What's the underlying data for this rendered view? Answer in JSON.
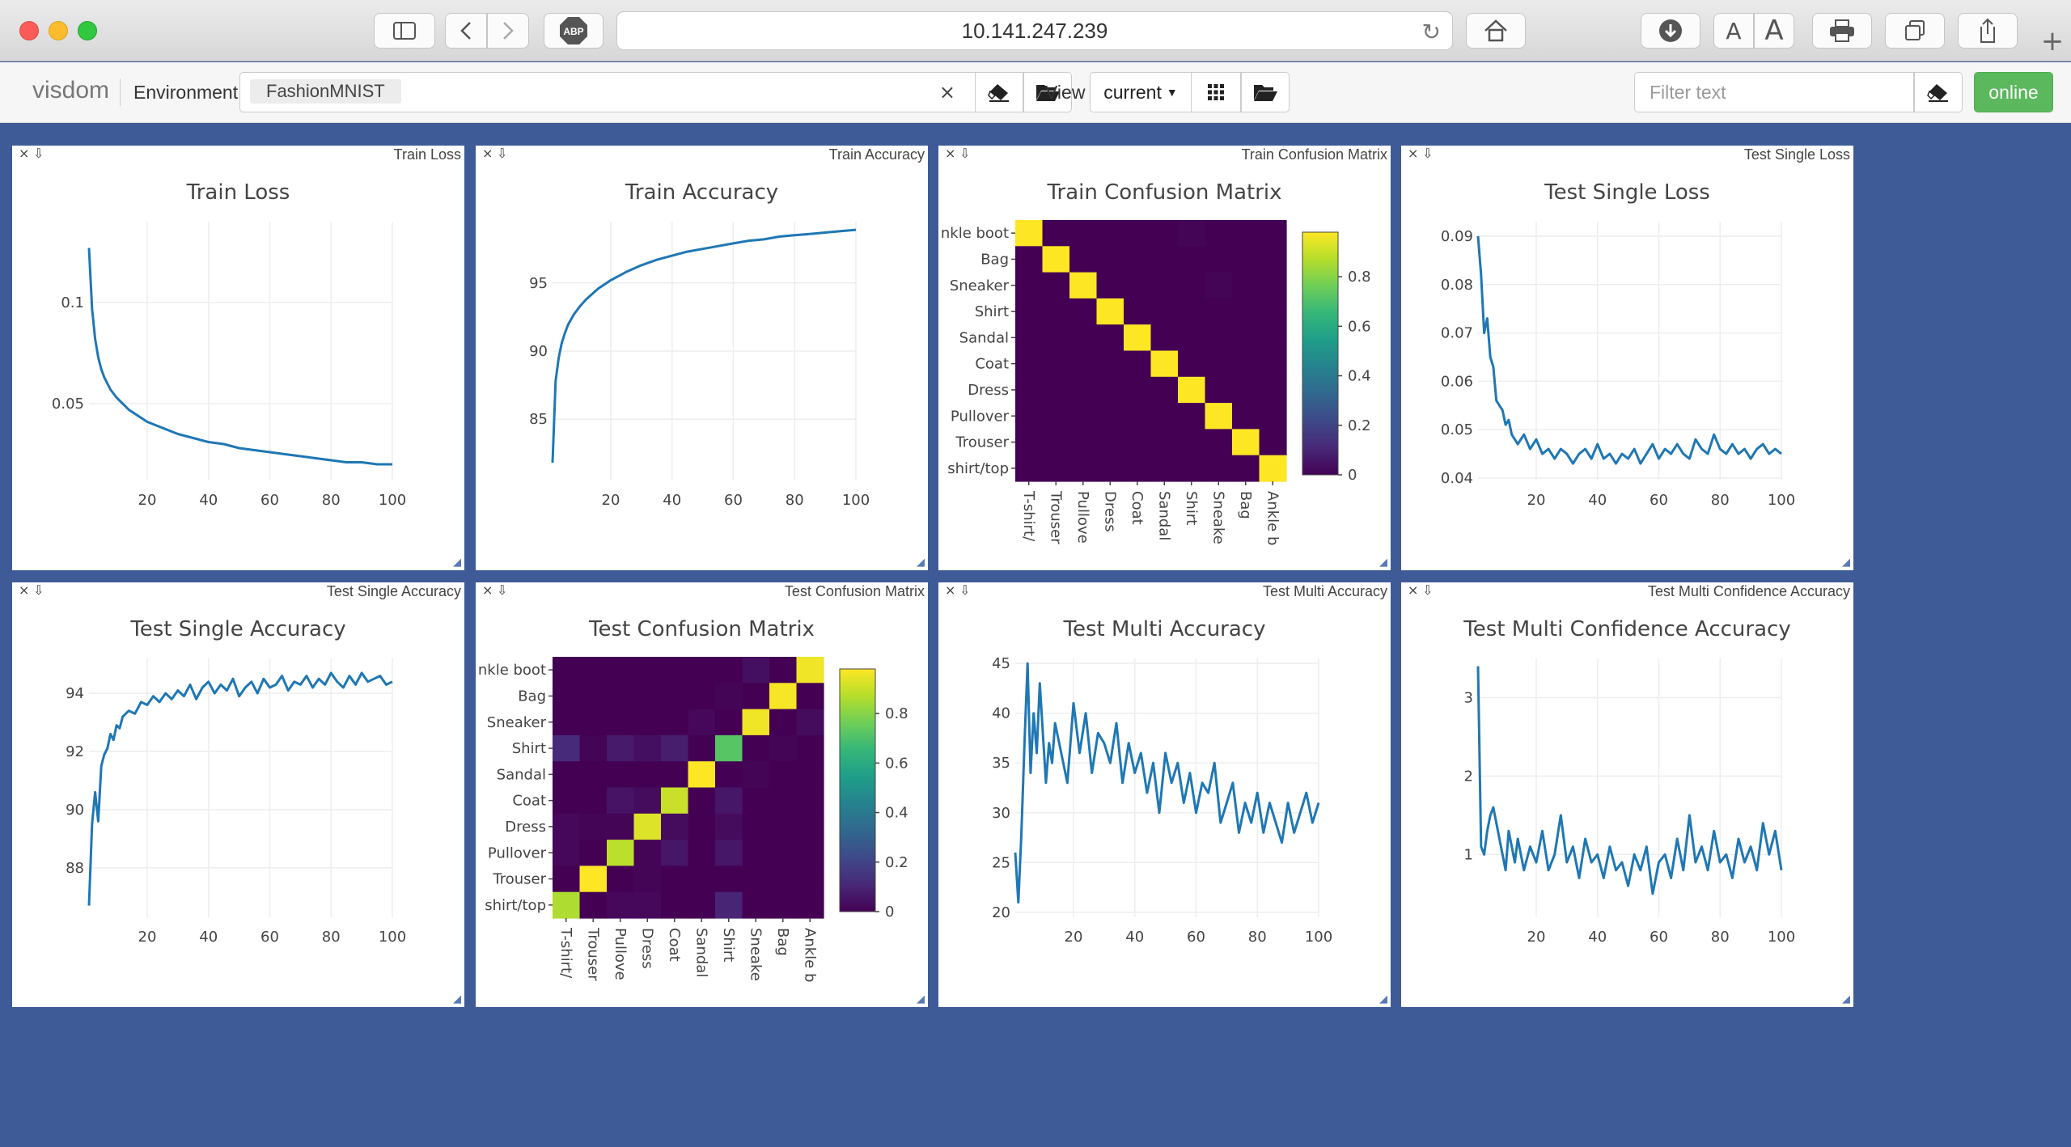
{
  "browser": {
    "url": "10.141.247.239",
    "adblock_label": "ABP",
    "text_smaller": "A",
    "text_larger": "A",
    "icons": [
      "sidebar-icon",
      "back-icon",
      "forward-icon",
      "adblock-icon",
      "reload-icon",
      "home-icon",
      "download-icon",
      "print-icon",
      "tabs-icon",
      "share-icon",
      "new-tab-icon"
    ]
  },
  "toolbar": {
    "brand": "visdom",
    "environment_label": "Environment",
    "environment_chip": "FashionMNIST",
    "clear_symbol": "×",
    "view_label": "View",
    "view_value": "current",
    "filter_placeholder": "Filter text",
    "status": "online"
  },
  "colors": {
    "background": "#3e5b98",
    "line": "#1f77b4",
    "online": "#5cb85c",
    "viridis_low": "#440154",
    "viridis_high": "#fde725"
  },
  "chart_data": [
    {
      "id": "train-loss",
      "type": "line",
      "caption": "Train Loss",
      "title": "Train Loss",
      "xlim": [
        1,
        100
      ],
      "ylim": [
        0.012,
        0.14
      ],
      "x_ticks": [
        20,
        40,
        60,
        80,
        100
      ],
      "x_tick_labels": [
        "20",
        "40",
        "60",
        "80",
        "100"
      ],
      "y_ticks": [
        0.05,
        0.1
      ],
      "y_tick_labels": [
        "0.05",
        "0.1"
      ],
      "x": [
        1,
        2,
        3,
        4,
        5,
        6,
        7,
        8,
        9,
        10,
        12,
        14,
        16,
        18,
        20,
        25,
        30,
        35,
        40,
        45,
        50,
        55,
        60,
        65,
        70,
        75,
        80,
        85,
        90,
        95,
        100
      ],
      "y": [
        0.127,
        0.097,
        0.082,
        0.073,
        0.067,
        0.063,
        0.06,
        0.057,
        0.055,
        0.053,
        0.05,
        0.047,
        0.045,
        0.043,
        0.041,
        0.038,
        0.035,
        0.033,
        0.031,
        0.03,
        0.028,
        0.027,
        0.026,
        0.025,
        0.024,
        0.023,
        0.022,
        0.021,
        0.021,
        0.02,
        0.02
      ]
    },
    {
      "id": "train-accuracy",
      "type": "line",
      "caption": "Train Accuracy",
      "title": "Train Accuracy",
      "xlim": [
        1,
        100
      ],
      "ylim": [
        80.5,
        99.5
      ],
      "x_ticks": [
        20,
        40,
        60,
        80,
        100
      ],
      "x_tick_labels": [
        "20",
        "40",
        "60",
        "80",
        "100"
      ],
      "y_ticks": [
        85,
        90,
        95
      ],
      "y_tick_labels": [
        "85",
        "90",
        "95"
      ],
      "x": [
        1,
        2,
        3,
        4,
        5,
        6,
        7,
        8,
        10,
        12,
        14,
        16,
        18,
        20,
        25,
        30,
        35,
        40,
        45,
        50,
        55,
        60,
        65,
        70,
        75,
        80,
        85,
        90,
        95,
        100
      ],
      "y": [
        81.8,
        87.8,
        89.5,
        90.6,
        91.3,
        91.9,
        92.3,
        92.7,
        93.3,
        93.8,
        94.2,
        94.6,
        94.9,
        95.2,
        95.8,
        96.3,
        96.7,
        97.0,
        97.3,
        97.5,
        97.7,
        97.9,
        98.1,
        98.2,
        98.4,
        98.5,
        98.6,
        98.7,
        98.8,
        98.9
      ]
    },
    {
      "id": "train-confusion",
      "type": "heatmap",
      "caption": "Train Confusion Matrix",
      "title": "Train Confusion Matrix",
      "y_tick_labels": [
        "nkle boot",
        "Bag",
        "Sneaker",
        "Shirt",
        "Sandal",
        "Coat",
        "Dress",
        "Pullover",
        "Trouser",
        "shirt/top"
      ],
      "x_tick_labels": [
        "T-shirt/",
        "Trouser",
        "Pullove",
        "Dress",
        "Coat",
        "Sandal",
        "Shirt",
        "Sneake",
        "Bag",
        "Ankle b"
      ],
      "colorbar_ticks": [
        0,
        0.2,
        0.4,
        0.6,
        0.8
      ],
      "colorbar_tick_labels": [
        "0",
        "0.2",
        "0.4",
        "0.6",
        "0.8"
      ],
      "zlim": [
        0,
        0.98
      ],
      "z": [
        [
          0.98,
          0,
          0,
          0,
          0,
          0,
          0.01,
          0,
          0,
          0
        ],
        [
          0,
          0.98,
          0,
          0,
          0,
          0,
          0,
          0,
          0,
          0
        ],
        [
          0,
          0,
          0.98,
          0,
          0,
          0,
          0,
          0.01,
          0,
          0
        ],
        [
          0,
          0,
          0,
          0.98,
          0,
          0,
          0,
          0,
          0,
          0
        ],
        [
          0,
          0,
          0,
          0,
          0.98,
          0,
          0,
          0,
          0,
          0
        ],
        [
          0,
          0,
          0,
          0,
          0,
          0.98,
          0,
          0,
          0,
          0
        ],
        [
          0,
          0,
          0,
          0,
          0,
          0,
          0.98,
          0,
          0,
          0
        ],
        [
          0,
          0,
          0,
          0,
          0,
          0,
          0,
          0.98,
          0,
          0
        ],
        [
          0,
          0,
          0,
          0,
          0,
          0,
          0,
          0,
          0.98,
          0
        ],
        [
          0,
          0,
          0,
          0,
          0,
          0,
          0,
          0,
          0,
          0.98
        ]
      ]
    },
    {
      "id": "test-single-loss",
      "type": "line",
      "caption": "Test Single Loss",
      "title": "Test Single Loss",
      "xlim": [
        1,
        100
      ],
      "ylim": [
        0.0395,
        0.093
      ],
      "x_ticks": [
        20,
        40,
        60,
        80,
        100
      ],
      "x_tick_labels": [
        "20",
        "40",
        "60",
        "80",
        "100"
      ],
      "y_ticks": [
        0.04,
        0.05,
        0.06,
        0.07,
        0.08,
        0.09
      ],
      "y_tick_labels": [
        "0.04",
        "0.05",
        "0.06",
        "0.07",
        "0.08",
        "0.09"
      ],
      "x": [
        1,
        2,
        3,
        4,
        5,
        6,
        7,
        8,
        9,
        10,
        11,
        12,
        14,
        16,
        18,
        20,
        22,
        24,
        26,
        28,
        30,
        32,
        34,
        36,
        38,
        40,
        42,
        44,
        46,
        48,
        50,
        52,
        54,
        56,
        58,
        60,
        62,
        64,
        66,
        68,
        70,
        72,
        74,
        76,
        78,
        80,
        82,
        84,
        86,
        88,
        90,
        92,
        94,
        96,
        98,
        100
      ],
      "y": [
        0.09,
        0.082,
        0.07,
        0.073,
        0.065,
        0.063,
        0.056,
        0.055,
        0.054,
        0.051,
        0.052,
        0.049,
        0.047,
        0.049,
        0.046,
        0.048,
        0.045,
        0.046,
        0.044,
        0.046,
        0.045,
        0.043,
        0.045,
        0.046,
        0.044,
        0.047,
        0.044,
        0.045,
        0.043,
        0.045,
        0.044,
        0.046,
        0.043,
        0.045,
        0.047,
        0.044,
        0.046,
        0.045,
        0.047,
        0.045,
        0.044,
        0.048,
        0.046,
        0.045,
        0.049,
        0.046,
        0.045,
        0.047,
        0.045,
        0.046,
        0.044,
        0.046,
        0.047,
        0.045,
        0.046,
        0.045
      ]
    },
    {
      "id": "test-single-accuracy",
      "type": "line",
      "caption": "Test Single Accuracy",
      "title": "Test Single Accuracy",
      "xlim": [
        1,
        100
      ],
      "ylim": [
        86.3,
        95.2
      ],
      "x_ticks": [
        20,
        40,
        60,
        80,
        100
      ],
      "x_tick_labels": [
        "20",
        "40",
        "60",
        "80",
        "100"
      ],
      "y_ticks": [
        88,
        90,
        92,
        94
      ],
      "y_tick_labels": [
        "88",
        "90",
        "92",
        "94"
      ],
      "x": [
        1,
        2,
        3,
        4,
        5,
        6,
        7,
        8,
        9,
        10,
        11,
        12,
        14,
        16,
        18,
        20,
        22,
        24,
        26,
        28,
        30,
        32,
        34,
        36,
        38,
        40,
        42,
        44,
        46,
        48,
        50,
        52,
        54,
        56,
        58,
        60,
        62,
        64,
        66,
        68,
        70,
        72,
        74,
        76,
        78,
        80,
        82,
        84,
        86,
        88,
        90,
        92,
        94,
        96,
        98,
        100
      ],
      "y": [
        86.7,
        89.5,
        90.6,
        89.6,
        91.5,
        91.9,
        92.1,
        92.6,
        92.4,
        92.9,
        92.8,
        93.2,
        93.4,
        93.3,
        93.7,
        93.6,
        93.9,
        93.7,
        94.0,
        93.8,
        94.1,
        93.9,
        94.3,
        93.8,
        94.2,
        94.4,
        94.0,
        94.3,
        94.1,
        94.5,
        93.9,
        94.2,
        94.4,
        94.0,
        94.5,
        94.2,
        94.3,
        94.6,
        94.1,
        94.4,
        94.3,
        94.6,
        94.2,
        94.5,
        94.3,
        94.7,
        94.4,
        94.2,
        94.6,
        94.3,
        94.7,
        94.4,
        94.5,
        94.6,
        94.3,
        94.4
      ]
    },
    {
      "id": "test-confusion",
      "type": "heatmap",
      "caption": "Test Confusion Matrix",
      "title": "Test Confusion Matrix",
      "y_tick_labels": [
        "nkle boot",
        "Bag",
        "Sneaker",
        "Shirt",
        "Sandal",
        "Coat",
        "Dress",
        "Pullover",
        "Trouser",
        "shirt/top"
      ],
      "x_tick_labels": [
        "T-shirt/",
        "Trouser",
        "Pullove",
        "Dress",
        "Coat",
        "Sandal",
        "Shirt",
        "Sneake",
        "Bag",
        "Ankle b"
      ],
      "colorbar_ticks": [
        0,
        0.2,
        0.4,
        0.6,
        0.8
      ],
      "colorbar_tick_labels": [
        "0",
        "0.2",
        "0.4",
        "0.6",
        "0.8"
      ],
      "zlim": [
        0,
        0.98
      ],
      "z": [
        [
          0,
          0,
          0,
          0,
          0,
          0,
          0,
          0.04,
          0,
          0.96
        ],
        [
          0,
          0,
          0,
          0,
          0,
          0,
          0.01,
          0,
          0.97,
          0
        ],
        [
          0,
          0,
          0,
          0,
          0,
          0.02,
          0,
          0.96,
          0,
          0.03
        ],
        [
          0.12,
          0.01,
          0.07,
          0.04,
          0.08,
          0,
          0.72,
          0,
          0.01,
          0
        ],
        [
          0,
          0,
          0,
          0,
          0,
          0.98,
          0,
          0.01,
          0,
          0
        ],
        [
          0,
          0,
          0.05,
          0.03,
          0.9,
          0,
          0.06,
          0,
          0,
          0
        ],
        [
          0.02,
          0.01,
          0.01,
          0.93,
          0.03,
          0,
          0.03,
          0,
          0,
          0
        ],
        [
          0.02,
          0,
          0.88,
          0.01,
          0.06,
          0,
          0.06,
          0,
          0,
          0
        ],
        [
          0,
          0.98,
          0,
          0.01,
          0,
          0,
          0,
          0,
          0,
          0
        ],
        [
          0.86,
          0,
          0.02,
          0.02,
          0,
          0,
          0.1,
          0,
          0,
          0
        ]
      ]
    },
    {
      "id": "test-multi-accuracy",
      "type": "line",
      "caption": "Test Multi Accuracy",
      "title": "Test Multi Accuracy",
      "xlim": [
        1,
        100
      ],
      "ylim": [
        19.5,
        45.5
      ],
      "x_ticks": [
        20,
        40,
        60,
        80,
        100
      ],
      "x_tick_labels": [
        "20",
        "40",
        "60",
        "80",
        "100"
      ],
      "y_ticks": [
        20,
        25,
        30,
        35,
        40,
        45
      ],
      "y_tick_labels": [
        "20",
        "25",
        "30",
        "35",
        "40",
        "45"
      ],
      "x": [
        1,
        2,
        3,
        4,
        5,
        6,
        7,
        8,
        9,
        10,
        11,
        12,
        13,
        14,
        16,
        18,
        20,
        22,
        24,
        26,
        28,
        30,
        32,
        34,
        36,
        38,
        40,
        42,
        44,
        46,
        48,
        50,
        52,
        54,
        56,
        58,
        60,
        62,
        64,
        66,
        68,
        70,
        72,
        74,
        76,
        78,
        80,
        82,
        84,
        86,
        88,
        90,
        92,
        94,
        96,
        98,
        100
      ],
      "y": [
        26,
        21,
        28,
        37,
        45,
        34,
        40,
        36,
        43,
        38,
        33,
        37,
        35,
        39,
        36,
        33,
        41,
        36,
        40,
        34,
        38,
        37,
        35,
        39,
        33,
        37,
        34,
        36,
        32,
        35,
        30,
        36,
        33,
        35,
        31,
        34,
        30,
        33,
        32,
        35,
        29,
        31,
        33,
        28,
        31,
        29,
        32,
        28,
        31,
        29,
        27,
        31,
        28,
        30,
        32,
        29,
        31
      ]
    },
    {
      "id": "test-multi-confidence",
      "type": "line",
      "caption": "Test Multi Confidence Accuracy",
      "title": "Test Multi Confidence Accuracy",
      "xlim": [
        1,
        100
      ],
      "ylim": [
        0.2,
        3.5
      ],
      "x_ticks": [
        20,
        40,
        60,
        80,
        100
      ],
      "x_tick_labels": [
        "20",
        "40",
        "60",
        "80",
        "100"
      ],
      "y_ticks": [
        1,
        2,
        3
      ],
      "y_tick_labels": [
        "1",
        "2",
        "3"
      ],
      "x": [
        1,
        2,
        3,
        4,
        5,
        6,
        7,
        8,
        9,
        10,
        11,
        12,
        13,
        14,
        16,
        18,
        20,
        22,
        24,
        26,
        28,
        30,
        32,
        34,
        36,
        38,
        40,
        42,
        44,
        46,
        48,
        50,
        52,
        54,
        56,
        58,
        60,
        62,
        64,
        66,
        68,
        70,
        72,
        74,
        76,
        78,
        80,
        82,
        84,
        86,
        88,
        90,
        92,
        94,
        96,
        98,
        100
      ],
      "y": [
        3.4,
        1.1,
        1.0,
        1.3,
        1.5,
        1.6,
        1.4,
        1.2,
        1.0,
        0.8,
        1.3,
        1.1,
        0.9,
        1.2,
        0.8,
        1.1,
        0.9,
        1.3,
        0.8,
        1.0,
        1.5,
        0.9,
        1.1,
        0.7,
        1.2,
        0.9,
        1.0,
        0.7,
        1.1,
        0.8,
        0.9,
        0.6,
        1.0,
        0.8,
        1.1,
        0.5,
        0.9,
        1.0,
        0.7,
        1.2,
        0.8,
        1.5,
        0.9,
        1.1,
        0.8,
        1.3,
        0.9,
        1.0,
        0.7,
        1.2,
        0.9,
        1.1,
        0.8,
        1.4,
        1.0,
        1.3,
        0.8
      ]
    }
  ]
}
